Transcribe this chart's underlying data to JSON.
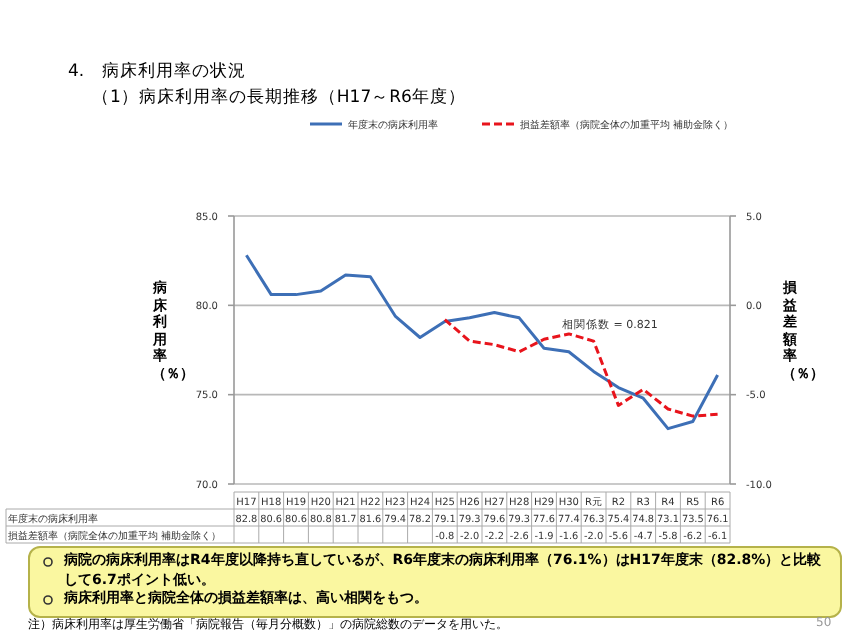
{
  "chart_data": {
    "type": "line",
    "title": "4.　病床利用率の状況",
    "subtitle": "（1）病床利用率の長期推移（H17～R6年度）",
    "ylabel": "病床利用率（％）",
    "y2label": "損益差額率（％）",
    "categories": [
      "H17",
      "H18",
      "H19",
      "H20",
      "H21",
      "H22",
      "H23",
      "H24",
      "H25",
      "H26",
      "H27",
      "H28",
      "H29",
      "H30",
      "R元",
      "R2",
      "R3",
      "R4",
      "R5",
      "R6"
    ],
    "series": [
      {
        "name": "年度末の病床利用率",
        "color": "#3d6fb6",
        "line_style": "solid",
        "values": [
          82.8,
          80.6,
          80.6,
          80.8,
          81.7,
          81.6,
          79.4,
          78.2,
          79.1,
          79.3,
          79.6,
          79.3,
          77.6,
          77.4,
          76.3,
          75.4,
          74.8,
          73.1,
          73.5,
          76.1
        ],
        "value_labels": [
          "82.8",
          "80.6",
          "80.6",
          "80.8",
          "81.7",
          "81.6",
          "79.4",
          "78.2",
          "79.1",
          "79.3",
          "79.6",
          "79.3",
          "77.6",
          "77.4",
          "76.3",
          "75.4",
          "74.8",
          "73.1",
          "73.5",
          "76.1"
        ]
      },
      {
        "name": "損益差額率（病院全体の加重平均 補助金除く）",
        "color": "#e8141c",
        "line_style": "dashed",
        "axis": "y2",
        "values": [
          null,
          null,
          null,
          null,
          null,
          null,
          null,
          null,
          -0.8,
          -2.0,
          -2.2,
          -2.6,
          -1.9,
          -1.6,
          -2.0,
          -5.6,
          -4.7,
          -5.8,
          -6.2,
          -6.1
        ],
        "value_labels": [
          null,
          null,
          null,
          null,
          null,
          null,
          null,
          null,
          "-0.8",
          "-2.0",
          "-2.2",
          "-2.6",
          "-1.9",
          "-1.6",
          "-2.0",
          "-5.6",
          "-4.7",
          "-5.8",
          "-6.2",
          "-6.1"
        ]
      }
    ],
    "ylim": [
      70,
      85
    ],
    "yticks": [
      {
        "value": 70,
        "label": "70.0"
      },
      {
        "value": 75,
        "label": "75.0"
      },
      {
        "value": 80,
        "label": "80.0"
      },
      {
        "value": 85,
        "label": "85.0"
      }
    ],
    "y2lim": [
      -10,
      5
    ],
    "y2ticks": [
      {
        "value": -10,
        "label": "-10.0"
      },
      {
        "value": -5,
        "label": "-5.0"
      },
      {
        "value": 0,
        "label": "0.0"
      },
      {
        "value": 5,
        "label": "5.0"
      }
    ],
    "grid": "y",
    "legend": "top",
    "marker": "none",
    "annotations": [
      "相関係数 = 0.821",
      "病院の病床利用率はR4年度以降持ち直しているが、R6年度末の病床利用率（76.1%）はH17年度末（82.8%）と比較して6.7ポイント低い。",
      "病床利用率と病院全体の損益差額率は、高い相関をもつ。",
      "注）病床利用率は厚生労働省「病院報告（毎月分概数）」の病院総数のデータを用いた。",
      "50"
    ]
  }
}
